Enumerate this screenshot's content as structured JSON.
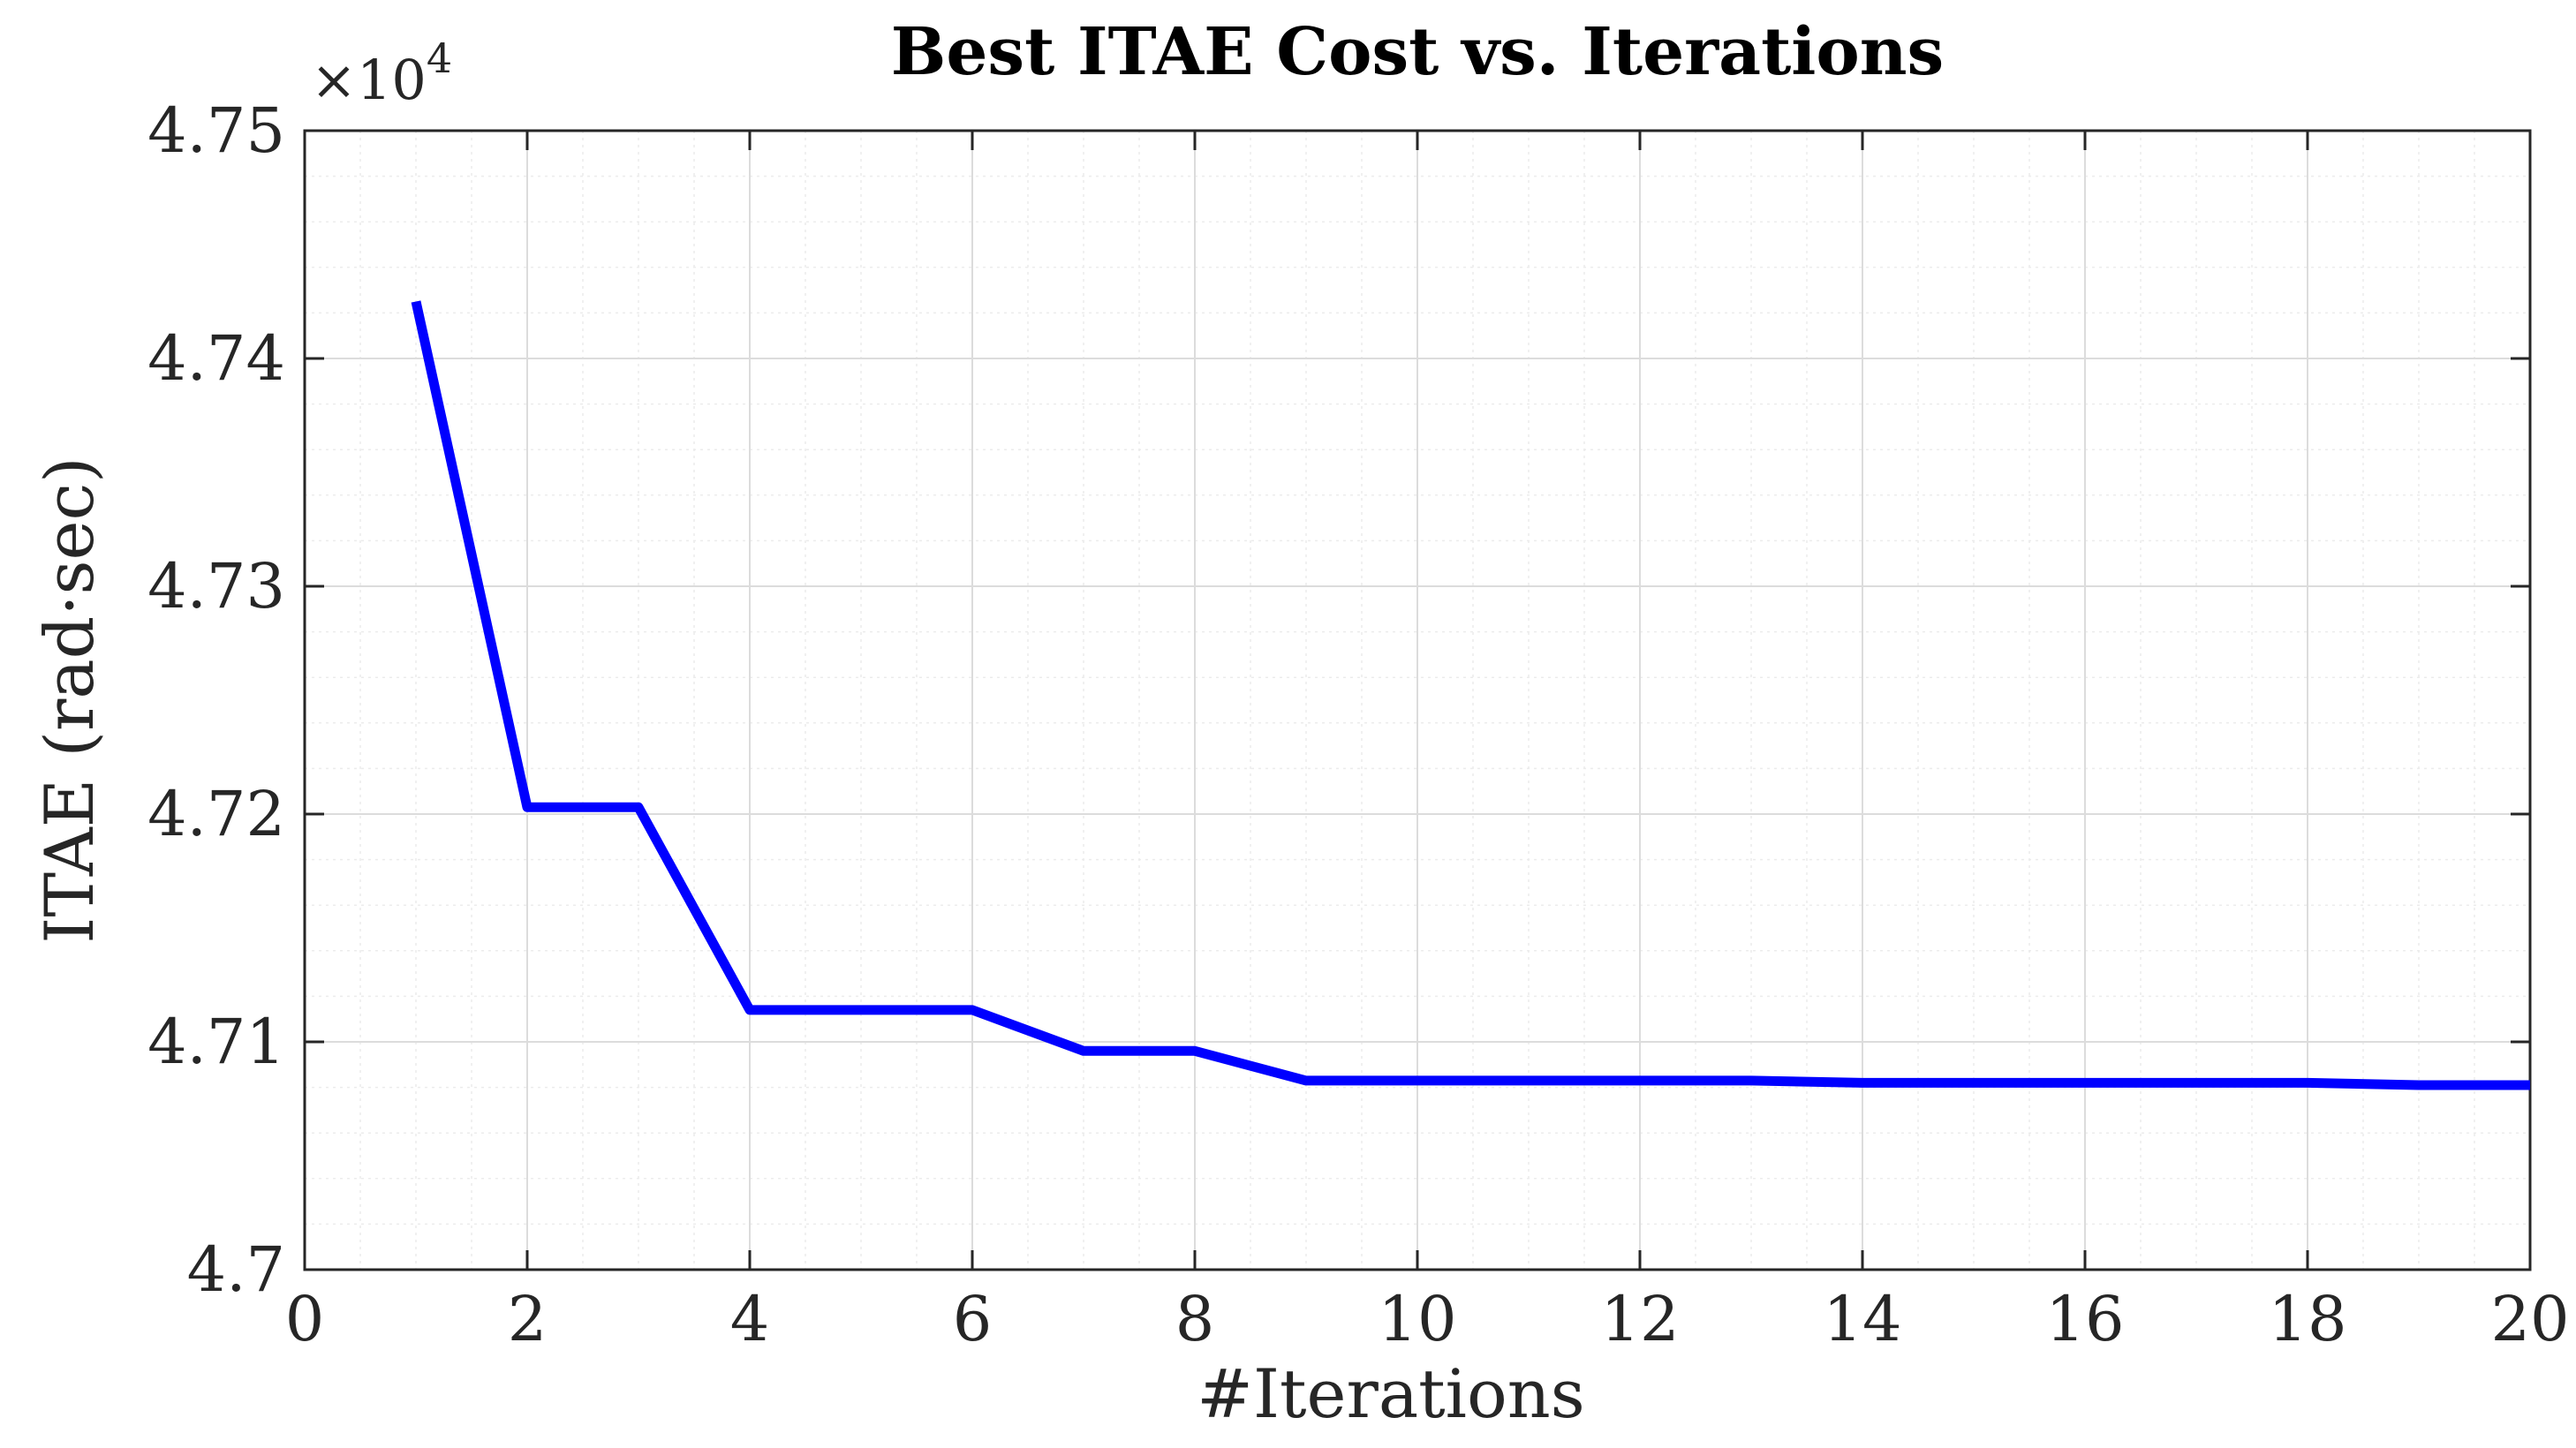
{
  "chart_data": {
    "type": "line",
    "title": "Best ITAE Cost vs. Iterations",
    "xlabel": "#Iterations",
    "ylabel": "ITAE  (rad·sec)",
    "y_exponent_label": "×10",
    "y_exponent_power": "4",
    "xlim": [
      0,
      20
    ],
    "ylim": [
      4.7,
      4.75
    ],
    "x_ticks": [
      0,
      2,
      4,
      6,
      8,
      10,
      12,
      14,
      16,
      18,
      20
    ],
    "x_tick_labels": [
      "0",
      "2",
      "4",
      "6",
      "8",
      "10",
      "12",
      "14",
      "16",
      "18",
      "20"
    ],
    "y_ticks": [
      4.7,
      4.71,
      4.72,
      4.73,
      4.74,
      4.75
    ],
    "y_tick_labels": [
      "4.7",
      "4.71",
      "4.72",
      "4.73",
      "4.74",
      "4.75"
    ],
    "grid": true,
    "minor_grid": true,
    "line_color": "#0000ff",
    "series": [
      {
        "x": [
          1,
          2,
          3,
          4,
          5,
          6,
          7,
          8,
          9,
          10,
          11,
          12,
          13,
          14,
          15,
          16,
          17,
          18,
          19,
          20
        ],
        "y": [
          4.7425,
          4.7203,
          4.7203,
          4.7114,
          4.7114,
          4.7114,
          4.7096,
          4.7096,
          4.7083,
          4.7083,
          4.7083,
          4.7083,
          4.7083,
          4.7082,
          4.7082,
          4.7082,
          4.7082,
          4.7082,
          4.7081,
          4.7081
        ]
      }
    ]
  }
}
